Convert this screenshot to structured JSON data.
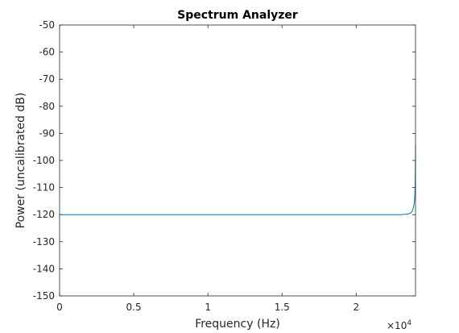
{
  "chart_data": {
    "type": "line",
    "title": "Spectrum Analyzer",
    "xlabel": "Frequency (Hz)",
    "ylabel": "Power (uncalibrated dB)",
    "x_exponent_label": "×10",
    "x_exponent_power": "4",
    "xlim": [
      0,
      24000
    ],
    "ylim": [
      -150,
      -50
    ],
    "grid": false,
    "x_ticks": [
      {
        "value": 0,
        "label": "0"
      },
      {
        "value": 5000,
        "label": "0.5"
      },
      {
        "value": 10000,
        "label": "1"
      },
      {
        "value": 15000,
        "label": "1.5"
      },
      {
        "value": 20000,
        "label": "2"
      }
    ],
    "y_ticks": [
      {
        "value": -50,
        "label": "-50"
      },
      {
        "value": -60,
        "label": "-60"
      },
      {
        "value": -70,
        "label": "-70"
      },
      {
        "value": -80,
        "label": "-80"
      },
      {
        "value": -90,
        "label": "-90"
      },
      {
        "value": -100,
        "label": "-100"
      },
      {
        "value": -110,
        "label": "-110"
      },
      {
        "value": -120,
        "label": "-120"
      },
      {
        "value": -130,
        "label": "-130"
      },
      {
        "value": -140,
        "label": "-140"
      },
      {
        "value": -150,
        "label": "-150"
      }
    ],
    "series": [
      {
        "color": "#0072bd",
        "x": [
          0,
          4000,
          8000,
          12000,
          16000,
          20000,
          23000,
          23500,
          23700,
          23800,
          23880,
          23930,
          23960,
          23980,
          23992,
          24000
        ],
        "y": [
          -120,
          -120,
          -120,
          -120,
          -120,
          -120,
          -120,
          -119.8,
          -119.3,
          -118.5,
          -117,
          -115,
          -112,
          -108,
          -102,
          -94
        ]
      }
    ]
  }
}
